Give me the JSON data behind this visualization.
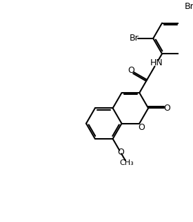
{
  "bg_color": "#ffffff",
  "line_color": "#000000",
  "lw": 1.5,
  "figsize": [
    2.8,
    3.23
  ],
  "dpi": 100,
  "labels": {
    "Br1": "Br",
    "Br2": "Br",
    "O_amide": "O",
    "HN": "HN",
    "O_lactone_exo": "O",
    "O_ring": "O",
    "O_methoxy": "O",
    "CH3": "CH₃"
  }
}
